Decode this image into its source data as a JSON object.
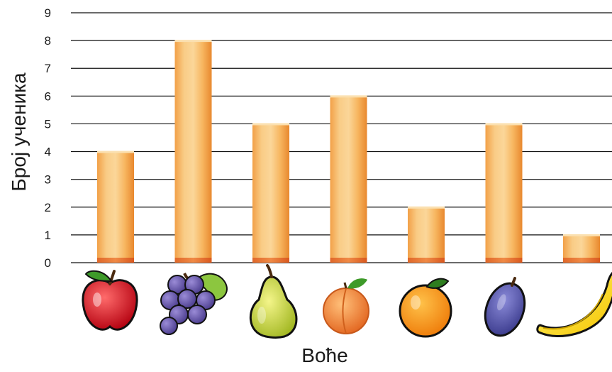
{
  "chart_data": {
    "type": "bar",
    "categories": [
      "apple",
      "grapes",
      "pear",
      "apricot",
      "orange",
      "plum",
      "banana"
    ],
    "values": [
      4,
      8,
      5,
      6,
      2,
      5,
      1
    ],
    "xlabel": "Воће",
    "ylabel": "Број ученика",
    "ylim": [
      0,
      9
    ],
    "yticks": [
      0,
      1,
      2,
      3,
      4,
      5,
      6,
      7,
      8,
      9
    ],
    "grid": true,
    "category_icons": [
      "apple-icon",
      "grapes-icon",
      "pear-icon",
      "apricot-icon",
      "orange-icon",
      "plum-icon",
      "banana-icon"
    ],
    "bar_color": "#F7B860"
  }
}
